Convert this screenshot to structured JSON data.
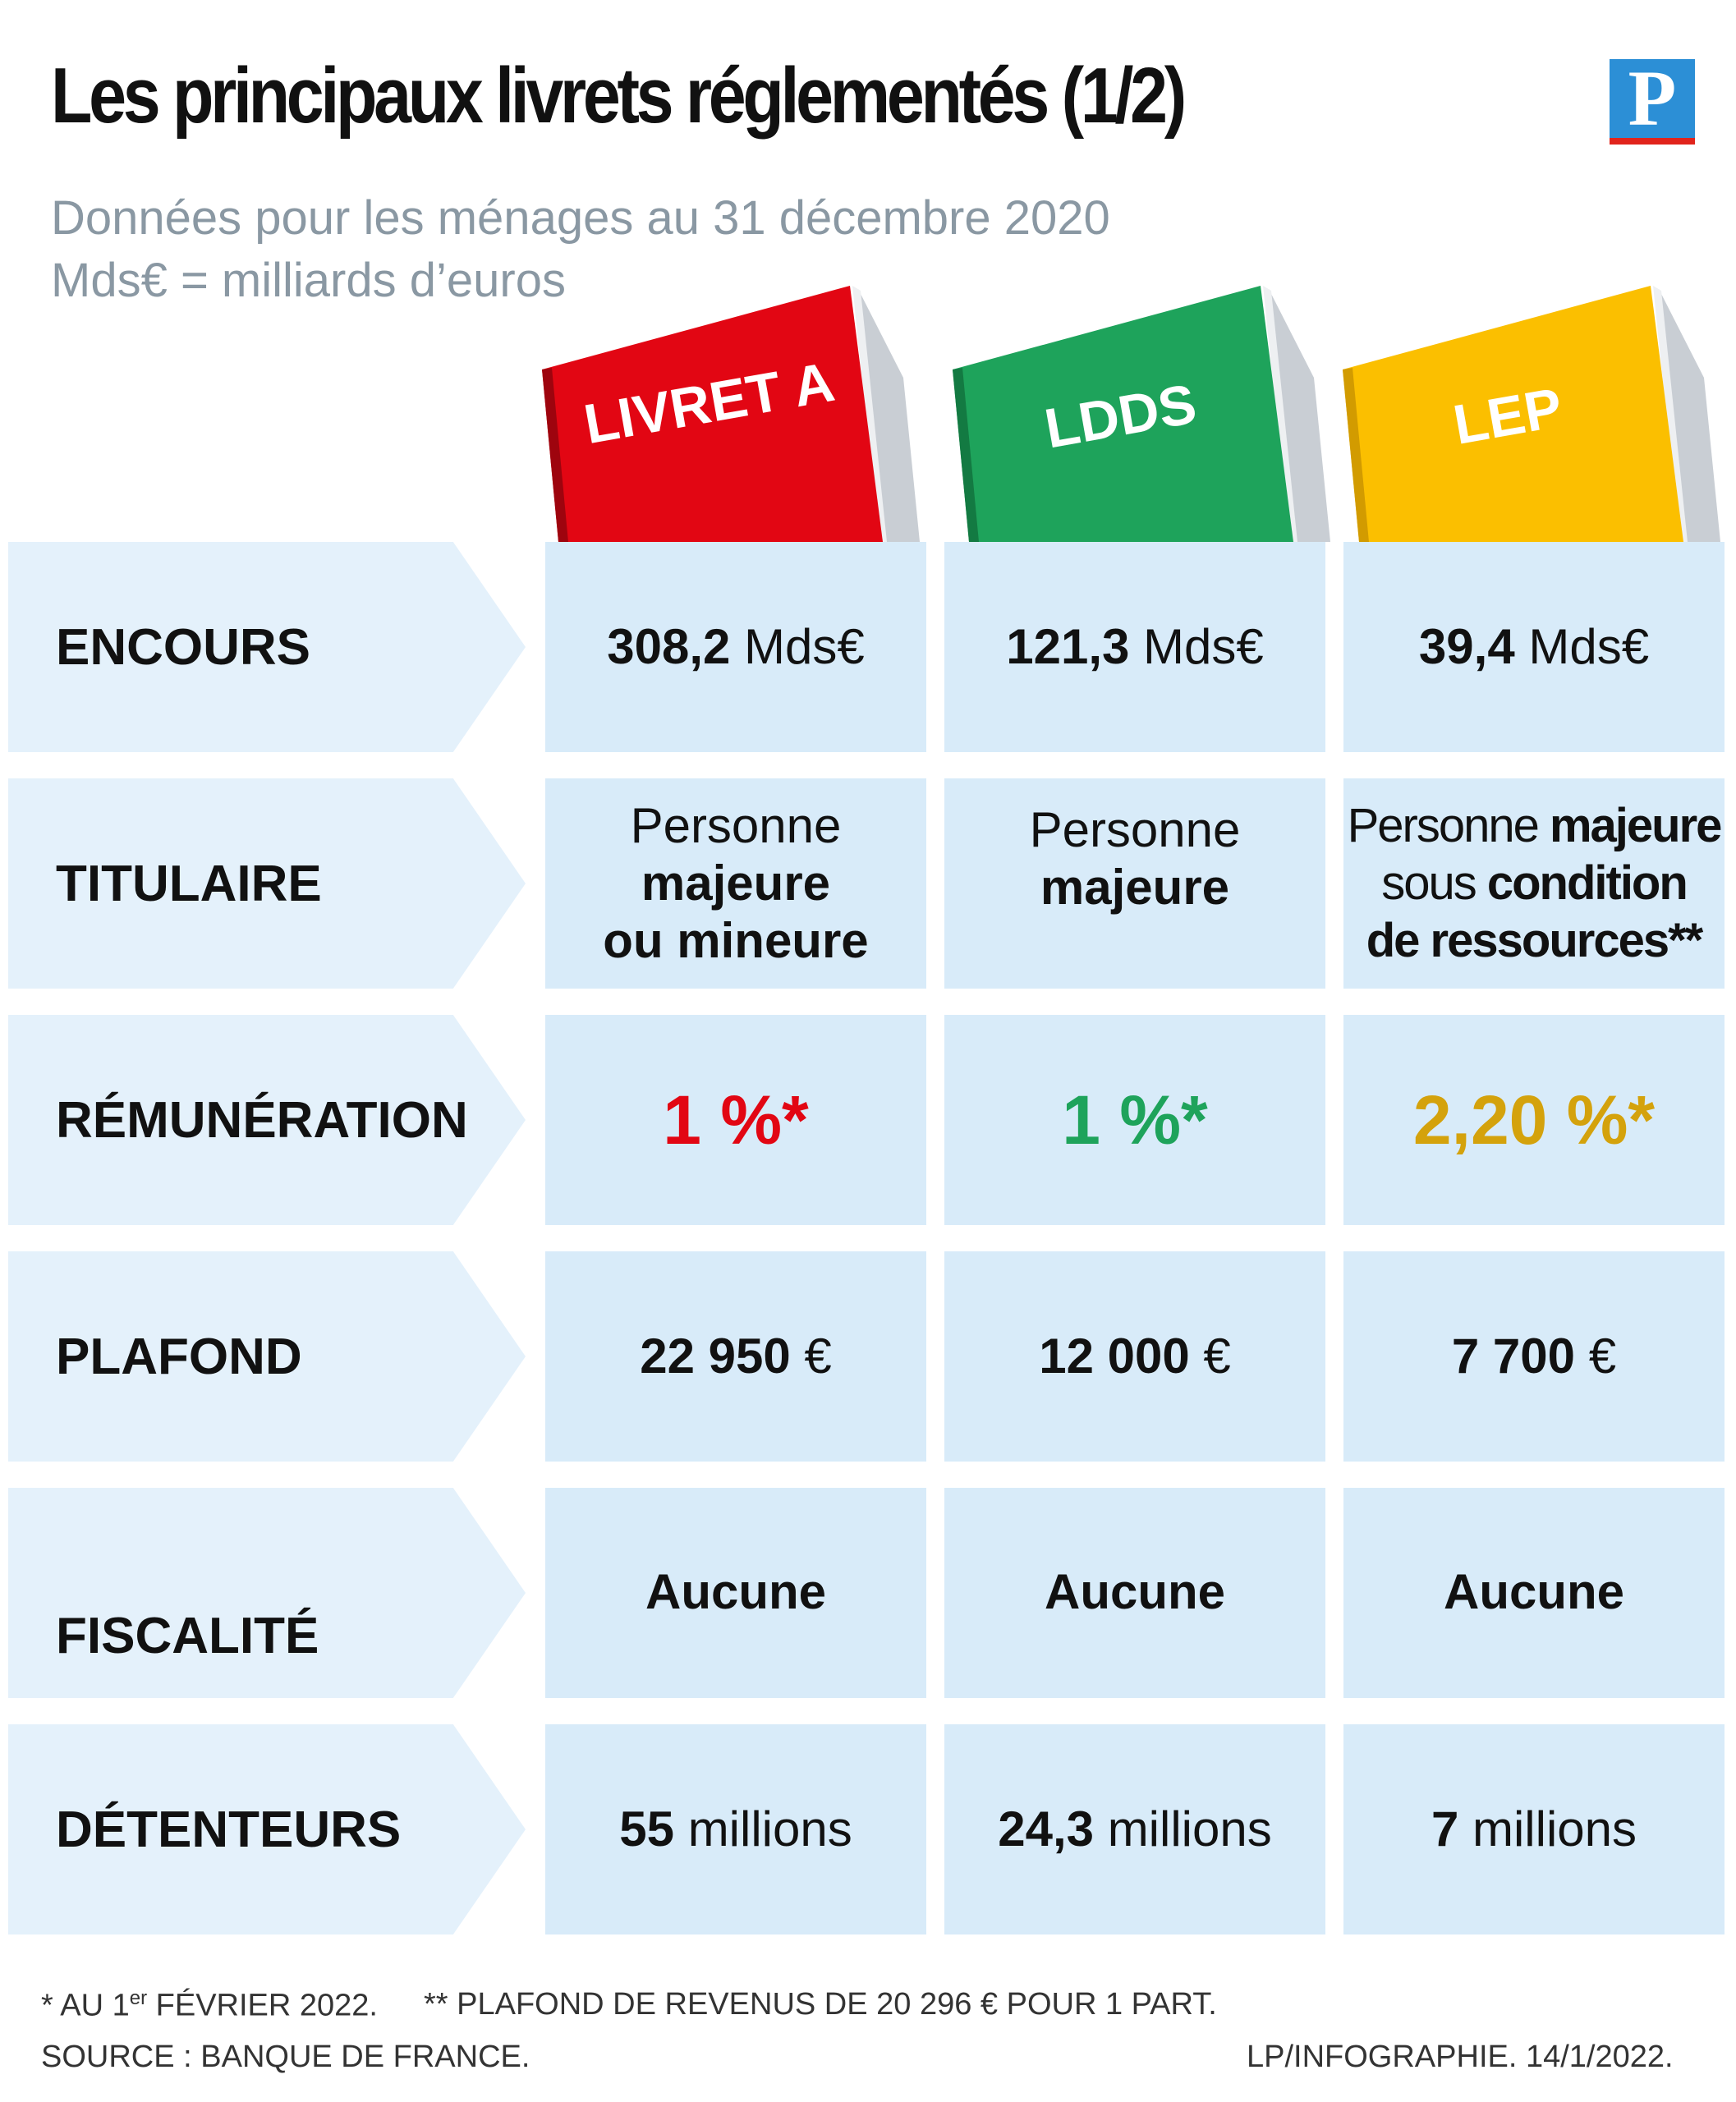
{
  "header": {
    "title": "Les principaux livrets réglementés (1/2)",
    "subtitle_line1": "Données pour les ménages au 31 décembre 2020",
    "subtitle_line2": "Mds€ = milliards d’euros",
    "logo_letter": "P"
  },
  "books": [
    {
      "label": "LIVRET A",
      "color": "#e20613"
    },
    {
      "label": "LDDS",
      "color": "#1ea35b"
    },
    {
      "label": "LEP",
      "color": "#fbbf00"
    }
  ],
  "row_labels": {
    "encours": "ENCOURS",
    "titulaire": "TITULAIRE",
    "remuneration": "RÉMUNÉRATION",
    "plafond": "PLAFOND",
    "fiscalite": "FISCALITÉ",
    "detenteurs": "DÉTENTEURS"
  },
  "encours": [
    {
      "value": "308,2",
      "unit": "Mds€"
    },
    {
      "value": "121,3",
      "unit": "Mds€"
    },
    {
      "value": "39,4",
      "unit": "Mds€"
    }
  ],
  "titulaire": {
    "livret_a": {
      "l1": "Personne",
      "l2": "majeure",
      "l3": "ou mineure"
    },
    "ldds": {
      "l1": "Personne",
      "l2": "majeure"
    },
    "lep": {
      "l1a": "Personne ",
      "l1b": "majeure",
      "l2a": "sous ",
      "l2b": "condition",
      "l3": "de ressources**"
    }
  },
  "remuneration": [
    {
      "value": "1 %*",
      "color": "#e20613"
    },
    {
      "value": "1 %*",
      "color": "#1ea35b"
    },
    {
      "value": "2,20 %*",
      "color": "#d4a20c"
    }
  ],
  "plafond": [
    {
      "value": "22 950",
      "unit": "€"
    },
    {
      "value": "12 000",
      "unit": "€"
    },
    {
      "value": "7 700",
      "unit": "€"
    }
  ],
  "fiscalite": [
    "Aucune",
    "Aucune",
    "Aucune"
  ],
  "detenteurs": [
    {
      "value": "55",
      "unit": "millions"
    },
    {
      "value": "24,3",
      "unit": "millions"
    },
    {
      "value": "7",
      "unit": "millions"
    }
  ],
  "footer": {
    "note1_pre": "* AU 1",
    "note1_sup": "er",
    "note1_post": " FÉVRIER 2022.",
    "note2": "** PLAFOND DE REVENUS DE 20 296 € POUR 1 PART.",
    "source": "SOURCE : BANQUE DE FRANCE.",
    "credit": "LP/INFOGRAPHIE.  14/1/2022."
  }
}
